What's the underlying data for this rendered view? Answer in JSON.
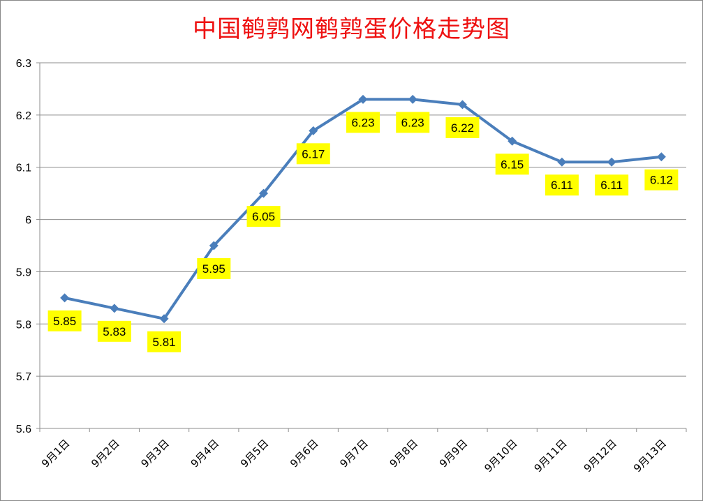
{
  "chart_data": {
    "type": "line",
    "title": "中国鹌鹑网鹌鹑蛋价格走势图",
    "categories": [
      "9月1日",
      "9月2日",
      "9月3日",
      "9月4日",
      "9月5日",
      "9月6日",
      "9月7日",
      "9月8日",
      "9月9日",
      "9月10日",
      "9月11日",
      "9月12日",
      "9月13日"
    ],
    "series": [
      {
        "values": [
          5.85,
          5.83,
          5.81,
          5.95,
          6.05,
          6.17,
          6.23,
          6.23,
          6.22,
          6.15,
          6.11,
          6.11,
          6.12
        ]
      }
    ],
    "data_labels": [
      "5.85",
      "5.83",
      "5.81",
      "5.95",
      "6.05",
      "6.17",
      "6.23",
      "6.23",
      "6.22",
      "6.15",
      "6.11",
      "6.11",
      "6.12"
    ],
    "ylim": [
      5.6,
      6.3
    ],
    "y_ticks": [
      5.6,
      5.7,
      5.8,
      5.9,
      6.0,
      6.1,
      6.2,
      6.3
    ],
    "y_tick_labels": [
      "5.6",
      "5.7",
      "5.8",
      "5.9",
      "6",
      "6.1",
      "6.2",
      "6.3"
    ],
    "grid": true,
    "legend": "none",
    "colors": {
      "line": "#4a7ebb",
      "title": "#ee1111",
      "label_bg": "#ffff00",
      "grid": "#8c8c8c"
    }
  }
}
